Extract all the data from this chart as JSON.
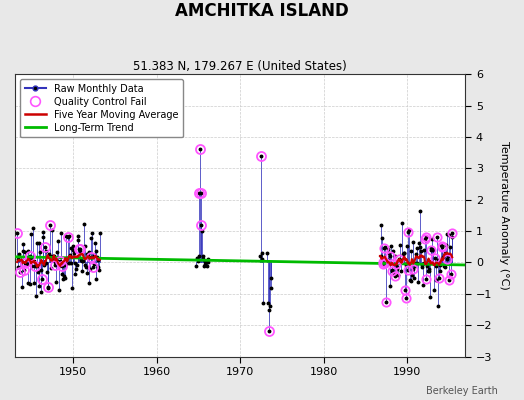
{
  "title": "AMCHITKA ISLAND",
  "subtitle": "51.383 N, 179.267 E (United States)",
  "ylabel": "Temperature Anomaly (°C)",
  "watermark": "Berkeley Earth",
  "xlim": [
    1943.0,
    1997.0
  ],
  "ylim": [
    -3.0,
    6.0
  ],
  "yticks": [
    -3,
    -2,
    -1,
    0,
    1,
    2,
    3,
    4,
    5,
    6
  ],
  "xticks": [
    1950,
    1960,
    1970,
    1980,
    1990
  ],
  "bg_color": "#e8e8e8",
  "plot_bg": "#ffffff",
  "grid_color": "#cccccc",
  "colors": {
    "raw_line": "#3333bb",
    "raw_dot": "#000000",
    "qc_fail": "#ff55ff",
    "five_year_ma": "#cc0000",
    "long_term_trend": "#00bb00"
  },
  "cluster1": {
    "x_start": 1943.25,
    "x_end": 1953.25,
    "seed": 7,
    "mean": 0.08,
    "std": 0.5
  },
  "cluster2_x": [
    1964.75,
    1964.83,
    1964.92,
    1965.0,
    1965.08,
    1965.17,
    1965.25,
    1965.33,
    1965.42,
    1965.5,
    1965.58,
    1965.67,
    1965.75,
    1965.83,
    1965.92,
    1966.0,
    1966.08,
    1966.17
  ],
  "cluster2_y": [
    -0.1,
    0.15,
    0.05,
    0.2,
    2.2,
    3.6,
    2.2,
    1.2,
    1.0,
    0.2,
    0.1,
    -0.1,
    0.05,
    -0.05,
    0.0,
    -0.1,
    0.0,
    0.1
  ],
  "cluster2_qc_idx": [
    4,
    5,
    6,
    7
  ],
  "cluster3_x": [
    1972.42,
    1972.5,
    1972.58,
    1972.67,
    1972.75,
    1973.25,
    1973.33,
    1973.42,
    1973.5,
    1973.58,
    1973.67,
    1973.75
  ],
  "cluster3_y": [
    0.2,
    3.4,
    0.3,
    0.1,
    -1.3,
    0.3,
    -1.3,
    -1.5,
    -2.2,
    -1.4,
    -0.8,
    -0.5
  ],
  "cluster3_qc_idx": [
    1,
    8
  ],
  "cluster4": {
    "x_start": 1986.75,
    "x_end": 1995.5,
    "seed": 99,
    "mean": 0.05,
    "std": 0.55
  },
  "long_term_trend_x": [
    1943.0,
    1997.0
  ],
  "long_term_trend_y": [
    0.18,
    -0.08
  ]
}
